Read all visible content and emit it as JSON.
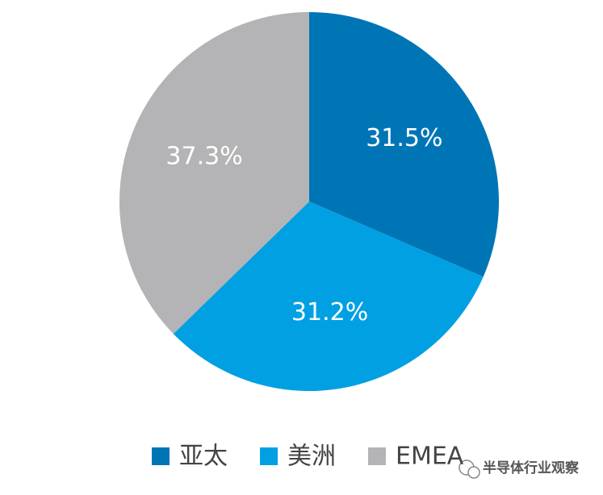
{
  "chart_data": {
    "type": "pie",
    "categories": [
      "亚太",
      "美洲",
      "EMEA"
    ],
    "values": [
      31.5,
      31.2,
      37.3
    ],
    "value_labels": [
      "31.5%",
      "31.2%",
      "37.3%"
    ],
    "colors": [
      "#0075b6",
      "#00a0e3",
      "#b4b4b6"
    ],
    "legend": "bottom",
    "watermark": "半导体行业观察"
  }
}
